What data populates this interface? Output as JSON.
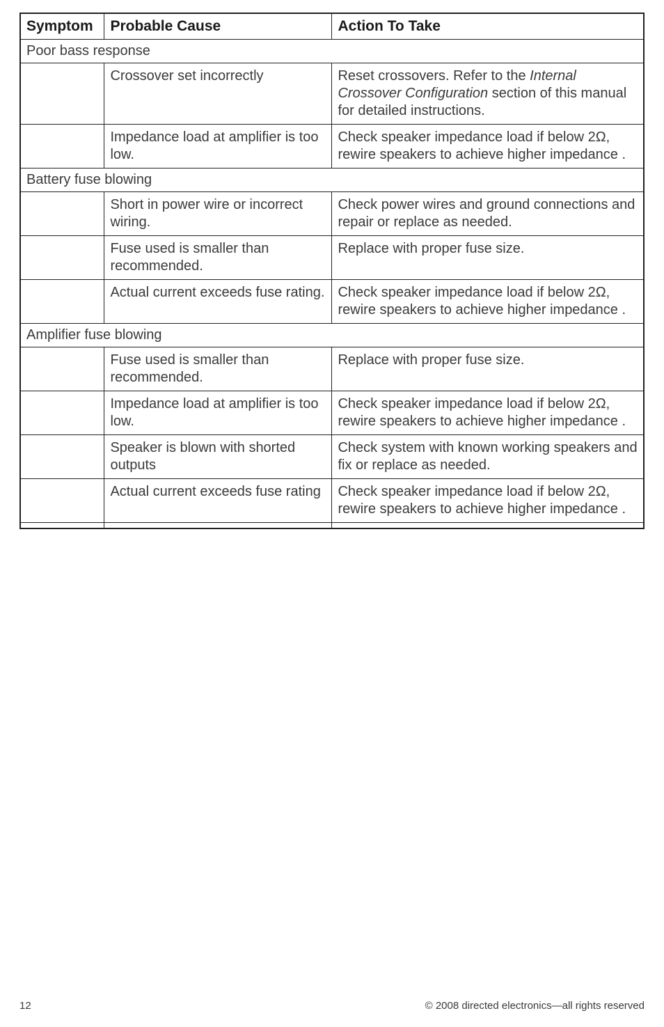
{
  "page": {
    "number": "12",
    "copyright": "© 2008 directed electronics—all rights reserved"
  },
  "colors": {
    "border": "#231f20",
    "text": "#3a3a3a",
    "heading": "#1a1a1a",
    "background": "#ffffff"
  },
  "table": {
    "type": "table",
    "columns": [
      "Symptom",
      "Probable Cause",
      "Action To Take"
    ],
    "col_widths_pct": [
      13.5,
      36.5,
      50.0
    ],
    "header_fontsize": 21,
    "cell_fontsize": 20,
    "header_fontweight": 800,
    "sections": [
      {
        "title": "Poor bass response",
        "rows": [
          {
            "symptom": "",
            "cause": "Crossover set incorrectly",
            "action_pre": "Reset crossovers. Refer to the ",
            "action_italic": "Internal Crossover Configuration",
            "action_post": " section of this manual for detailed instructions."
          },
          {
            "symptom": "",
            "cause": "Impedance load at amplifier is too low.",
            "action": "Check speaker impedance load if below 2Ω, rewire speakers to achieve higher impedance ."
          }
        ]
      },
      {
        "title": "Battery fuse blowing",
        "rows": [
          {
            "symptom": "",
            "cause": "Short in power wire or incorrect wiring.",
            "action": "Check power wires and ground connections and repair or replace as needed."
          },
          {
            "symptom": "",
            "cause": "Fuse used is smaller than recommended.",
            "action": "Replace with proper fuse size."
          },
          {
            "symptom": "",
            "cause": "Actual current exceeds fuse rating.",
            "action": "Check speaker impedance load if below 2Ω, rewire speakers to achieve higher impedance ."
          }
        ]
      },
      {
        "title": "Amplifier fuse blowing",
        "rows": [
          {
            "symptom": "",
            "cause": "Fuse used is smaller than recommended.",
            "action": "Replace with proper fuse size."
          },
          {
            "symptom": "",
            "cause": "Impedance load at amplifier is too low.",
            "action": "Check speaker impedance load if below 2Ω, rewire speakers to achieve higher impedance ."
          },
          {
            "symptom": "",
            "cause": "Speaker is blown with shorted outputs",
            "action": "Check system with known working speakers and fix or replace as needed."
          },
          {
            "symptom": "",
            "cause": "Actual current exceeds fuse rating",
            "action": "Check speaker impedance load if below 2Ω, rewire speakers to achieve higher impedance ."
          }
        ]
      }
    ]
  }
}
